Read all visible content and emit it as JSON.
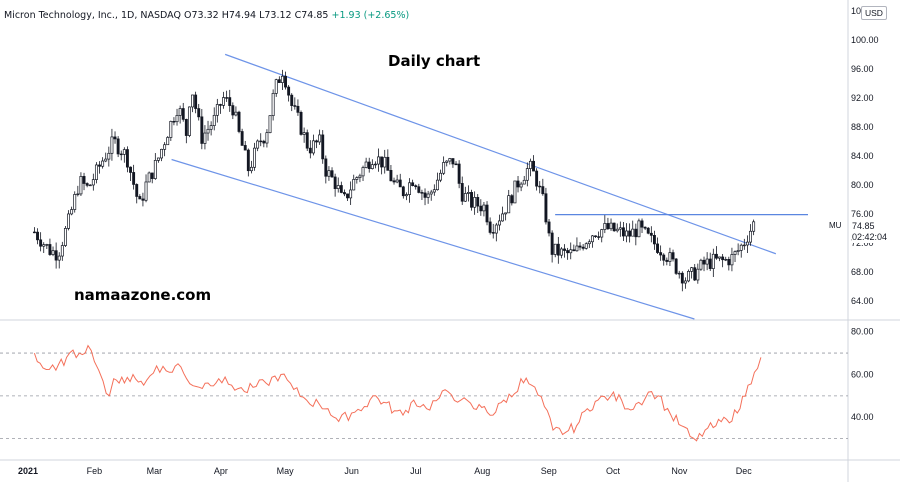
{
  "header": {
    "symbol_info": "Micron Technology, Inc., 1D, NASDAQ",
    "open": "O73.32",
    "high": "H74.94",
    "low": "L73.12",
    "close": "C74.85",
    "change": "+1.93 (+2.65%)"
  },
  "currency": "USD",
  "annotations": {
    "title": "Daily chart",
    "watermark": "namaazone.com",
    "symbol_label": "MU",
    "last_price": "74.85",
    "countdown": "02:42:04"
  },
  "colors": {
    "up": "#089981",
    "candle_body": "#131722",
    "channel_line": "#6e94e8",
    "resistance_line": "#5a86e0",
    "rsi_line": "#f4705a",
    "rsi_guide": "#9598a1"
  },
  "chart_data": [
    {
      "type": "candlestick",
      "price_axis": {
        "ticks": [
          "64.00",
          "68.00",
          "72.00",
          "76.00",
          "80.00",
          "84.00",
          "88.00",
          "92.00",
          "96.00",
          "100.00",
          "104.00"
        ],
        "range": [
          61.5,
          105.5
        ]
      },
      "x_axis": {
        "ticks": [
          "2021",
          "Feb",
          "Mar",
          "Apr",
          "May",
          "Jun",
          "Jul",
          "Aug",
          "Sep",
          "Oct",
          "Nov",
          "Dec"
        ]
      },
      "series": [
        {
          "kind": "close_path",
          "points": [
            [
              "2021-01-04",
              73.5
            ],
            [
              "2021-01-11",
              71.0
            ],
            [
              "2021-01-15",
              70.5
            ],
            [
              "2021-01-20",
              75.0
            ],
            [
              "2021-01-25",
              80.5
            ],
            [
              "2021-01-29",
              79.5
            ],
            [
              "2021-02-05",
              83.5
            ],
            [
              "2021-02-10",
              86.0
            ],
            [
              "2021-02-16",
              84.0
            ],
            [
              "2021-02-22",
              77.0
            ],
            [
              "2021-02-25",
              80.0
            ],
            [
              "2021-03-02",
              83.0
            ],
            [
              "2021-03-08",
              88.0
            ],
            [
              "2021-03-12",
              91.0
            ],
            [
              "2021-03-16",
              87.0
            ],
            [
              "2021-03-18",
              94.0
            ],
            [
              "2021-03-23",
              86.5
            ],
            [
              "2021-03-29",
              89.0
            ],
            [
              "2021-04-02",
              92.0
            ],
            [
              "2021-04-07",
              90.5
            ],
            [
              "2021-04-09",
              87.5
            ],
            [
              "2021-04-14",
              82.0
            ],
            [
              "2021-04-19",
              86.0
            ],
            [
              "2021-04-22",
              87.0
            ],
            [
              "2021-04-26",
              93.0
            ],
            [
              "2021-04-30",
              96.0
            ],
            [
              "2021-05-04",
              91.0
            ],
            [
              "2021-05-07",
              89.0
            ],
            [
              "2021-05-12",
              85.0
            ],
            [
              "2021-05-17",
              86.0
            ],
            [
              "2021-05-20",
              82.0
            ],
            [
              "2021-05-25",
              80.0
            ],
            [
              "2021-05-28",
              77.5
            ],
            [
              "2021-06-02",
              80.5
            ],
            [
              "2021-06-07",
              82.5
            ],
            [
              "2021-06-11",
              84.0
            ],
            [
              "2021-06-16",
              83.0
            ],
            [
              "2021-06-21",
              80.0
            ],
            [
              "2021-06-25",
              79.0
            ],
            [
              "2021-06-30",
              81.0
            ],
            [
              "2021-07-06",
              78.0
            ],
            [
              "2021-07-09",
              79.5
            ],
            [
              "2021-07-14",
              82.5
            ],
            [
              "2021-07-19",
              83.5
            ],
            [
              "2021-07-22",
              79.0
            ],
            [
              "2021-07-27",
              77.5
            ],
            [
              "2021-08-02",
              77.0
            ],
            [
              "2021-08-05",
              74.0
            ],
            [
              "2021-08-10",
              76.0
            ],
            [
              "2021-08-13",
              77.5
            ],
            [
              "2021-08-18",
              80.5
            ],
            [
              "2021-08-23",
              82.5
            ],
            [
              "2021-08-26",
              81.0
            ],
            [
              "2021-08-30",
              77.0
            ],
            [
              "2021-09-02",
              71.0
            ],
            [
              "2021-09-08",
              70.5
            ],
            [
              "2021-09-13",
              70.5
            ],
            [
              "2021-09-17",
              72.0
            ],
            [
              "2021-09-22",
              73.5
            ],
            [
              "2021-09-28",
              74.0
            ],
            [
              "2021-10-04",
              73.5
            ],
            [
              "2021-10-08",
              73.0
            ],
            [
              "2021-10-13",
              74.0
            ],
            [
              "2021-10-18",
              72.5
            ],
            [
              "2021-10-22",
              71.5
            ],
            [
              "2021-10-27",
              70.0
            ],
            [
              "2021-11-01",
              68.0
            ],
            [
              "2021-11-04",
              67.0
            ],
            [
              "2021-11-09",
              68.0
            ],
            [
              "2021-11-12",
              69.0
            ],
            [
              "2021-11-17",
              69.5
            ],
            [
              "2021-11-22",
              69.5
            ],
            [
              "2021-11-26",
              70.0
            ],
            [
              "2021-12-01",
              72.0
            ],
            [
              "2021-12-06",
              74.85
            ]
          ]
        },
        {
          "kind": "trendline",
          "name": "channel-upper",
          "points": [
            [
              "2021-04-03",
              98.0
            ],
            [
              "2021-12-16",
              70.5
            ]
          ]
        },
        {
          "kind": "trendline",
          "name": "channel-lower",
          "points": [
            [
              "2021-03-09",
              83.5
            ],
            [
              "2021-11-08",
              61.5
            ]
          ]
        },
        {
          "kind": "horizontal_line",
          "name": "resistance",
          "points": [
            [
              "2021-09-04",
              75.9
            ],
            [
              "2021-12-31",
              75.9
            ]
          ]
        }
      ]
    },
    {
      "type": "line",
      "indicator": "oscillator",
      "y_axis": {
        "ticks": [
          "40.00",
          "60.00",
          "80.00"
        ],
        "range": [
          20,
          85
        ],
        "guides": [
          30,
          50,
          70
        ]
      },
      "series": [
        {
          "kind": "line",
          "points": [
            [
              "2021-01-04",
              70.0
            ],
            [
              "2021-01-08",
              63.0
            ],
            [
              "2021-01-14",
              62.0
            ],
            [
              "2021-01-19",
              68.0
            ],
            [
              "2021-01-25",
              70.0
            ],
            [
              "2021-01-29",
              73.5
            ],
            [
              "2021-02-01",
              66.0
            ],
            [
              "2021-02-03",
              62.0
            ],
            [
              "2021-02-05",
              57.0
            ],
            [
              "2021-02-08",
              50.0
            ],
            [
              "2021-02-10",
              58.0
            ],
            [
              "2021-02-15",
              56.0
            ],
            [
              "2021-02-19",
              60.0
            ],
            [
              "2021-02-24",
              55.0
            ],
            [
              "2021-03-02",
              64.0
            ],
            [
              "2021-03-08",
              61.0
            ],
            [
              "2021-03-12",
              65.0
            ],
            [
              "2021-03-16",
              58.0
            ],
            [
              "2021-03-22",
              54.0
            ],
            [
              "2021-03-26",
              56.0
            ],
            [
              "2021-03-31",
              58.0
            ],
            [
              "2021-04-06",
              55.0
            ],
            [
              "2021-04-12",
              52.0
            ],
            [
              "2021-04-16",
              54.0
            ],
            [
              "2021-04-22",
              56.0
            ],
            [
              "2021-04-29",
              60.0
            ],
            [
              "2021-05-05",
              53.0
            ],
            [
              "2021-05-11",
              48.0
            ],
            [
              "2021-05-17",
              46.0
            ],
            [
              "2021-05-21",
              44.0
            ],
            [
              "2021-05-26",
              38.0
            ],
            [
              "2021-06-01",
              42.0
            ],
            [
              "2021-06-07",
              45.0
            ],
            [
              "2021-06-11",
              50.0
            ],
            [
              "2021-06-16",
              47.0
            ],
            [
              "2021-06-21",
              43.0
            ],
            [
              "2021-06-25",
              41.0
            ],
            [
              "2021-06-30",
              48.0
            ],
            [
              "2021-07-06",
              44.0
            ],
            [
              "2021-07-12",
              49.0
            ],
            [
              "2021-07-16",
              52.0
            ],
            [
              "2021-07-22",
              48.0
            ],
            [
              "2021-07-28",
              44.0
            ],
            [
              "2021-08-02",
              45.0
            ],
            [
              "2021-08-06",
              41.0
            ],
            [
              "2021-08-11",
              48.0
            ],
            [
              "2021-08-16",
              51.0
            ],
            [
              "2021-08-19",
              58.0
            ],
            [
              "2021-08-24",
              55.0
            ],
            [
              "2021-08-30",
              45.0
            ],
            [
              "2021-09-03",
              34.0
            ],
            [
              "2021-09-09",
              33.0
            ],
            [
              "2021-09-14",
              36.0
            ],
            [
              "2021-09-19",
              44.0
            ],
            [
              "2021-09-24",
              48.0
            ],
            [
              "2021-09-30",
              50.0
            ],
            [
              "2021-10-05",
              48.0
            ],
            [
              "2021-10-08",
              44.0
            ],
            [
              "2021-10-13",
              47.0
            ],
            [
              "2021-10-19",
              52.0
            ],
            [
              "2021-10-22",
              50.0
            ],
            [
              "2021-10-28",
              41.0
            ],
            [
              "2021-11-02",
              36.0
            ],
            [
              "2021-11-06",
              31.0
            ],
            [
              "2021-11-09",
              29.0
            ],
            [
              "2021-11-13",
              34.0
            ],
            [
              "2021-11-18",
              36.0
            ],
            [
              "2021-11-23",
              39.0
            ],
            [
              "2021-11-28",
              42.0
            ],
            [
              "2021-12-03",
              55.0
            ],
            [
              "2021-12-06",
              61.0
            ],
            [
              "2021-12-09",
              68.0
            ]
          ]
        }
      ]
    }
  ]
}
